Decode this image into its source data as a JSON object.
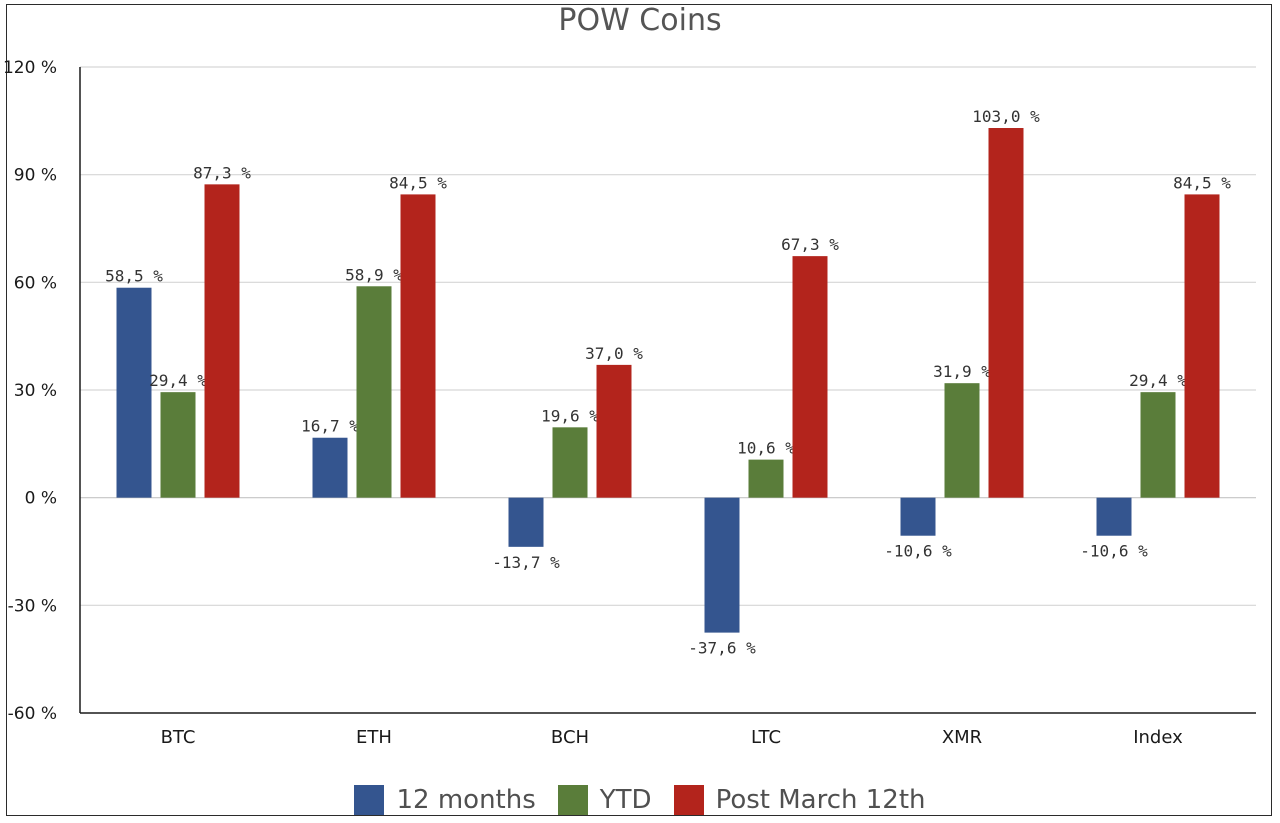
{
  "chart_data": {
    "type": "bar",
    "title": "POW Coins",
    "categories": [
      "BTC",
      "ETH",
      "BCH",
      "LTC",
      "XMR",
      "Index"
    ],
    "series": [
      {
        "name": "12 months",
        "color": "#34558f",
        "values": [
          58.5,
          16.7,
          -13.7,
          -37.6,
          -10.6,
          -10.6
        ],
        "labels": [
          "58,5 %",
          "16,7 %",
          "-13,7 %",
          "-37,6 %",
          "-10,6 %",
          "-10,6 %"
        ]
      },
      {
        "name": "YTD",
        "color": "#5a7d3a",
        "values": [
          29.4,
          58.9,
          19.6,
          10.6,
          31.9,
          29.4
        ],
        "labels": [
          "29,4 %",
          "58,9 %",
          "19,6 %",
          "10,6 %",
          "31,9 %",
          "29,4 %"
        ]
      },
      {
        "name": "Post March 12th",
        "color": "#b3241c",
        "values": [
          87.3,
          84.5,
          37.0,
          67.3,
          103.0,
          84.5
        ],
        "labels": [
          "87,3 %",
          "84,5 %",
          "37,0 %",
          "67,3 %",
          "103,0 %",
          "84,5 %"
        ]
      }
    ],
    "yticks": [
      120,
      90,
      60,
      30,
      0,
      -30,
      -60
    ],
    "ytick_labels": [
      "120 %",
      "90 %",
      "60 %",
      "30 %",
      "0 %",
      "-30 %",
      "-60 %"
    ],
    "ylim": [
      -60,
      120
    ],
    "grid": true,
    "legend_position": "bottom"
  }
}
